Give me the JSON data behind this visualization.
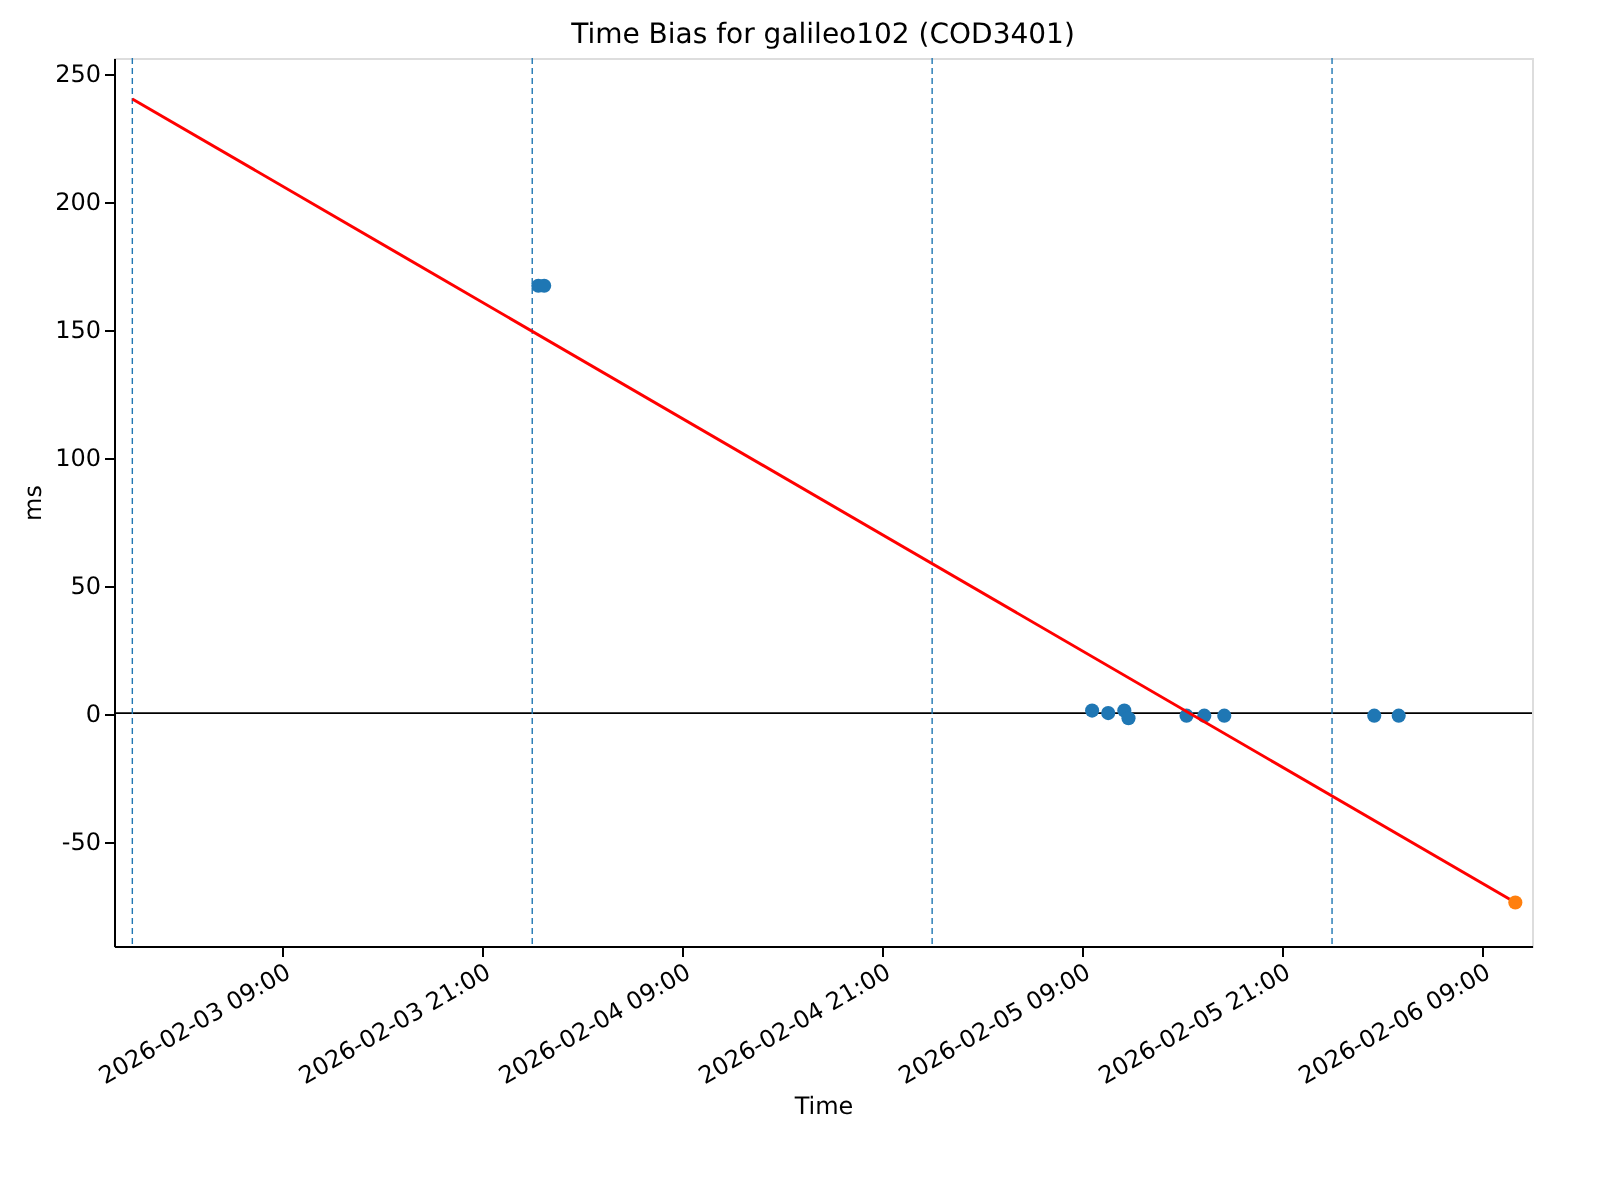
{
  "chart_data": {
    "type": "scatter",
    "title": "Time Bias for galileo102 (COD3401)",
    "xlabel": "Time",
    "ylabel": "ms",
    "series": [
      {
        "type": "scatter",
        "color": "#1f77b4",
        "marker": "circle",
        "x": [
          "2026-02-04T00:22",
          "2026-02-04T00:43",
          "2026-02-05T09:36",
          "2026-02-05T10:34",
          "2026-02-05T11:32",
          "2026-02-05T11:47",
          "2026-02-05T15:16",
          "2026-02-05T16:20",
          "2026-02-05T17:32",
          "2026-02-06T02:32",
          "2026-02-06T04:00"
        ],
        "values": [
          167,
          167,
          1,
          0,
          1,
          -2,
          -1,
          -1,
          -1,
          -1,
          -1
        ]
      },
      {
        "type": "line",
        "color": "#ff0000",
        "line_style": "solid",
        "marker": "none",
        "x": [
          "2026-02-03T00:00",
          "2026-02-06T11:00"
        ],
        "values": [
          240,
          -74
        ]
      },
      {
        "type": "scatter",
        "color": "#ff7f0e",
        "marker": "circle",
        "x": [
          "2026-02-06T11:00"
        ],
        "values": [
          -74
        ]
      }
    ],
    "xlim": [
      "2026-02-02T22:54",
      "2026-02-06T12:00"
    ],
    "xticks": [
      {
        "value": "2026-02-03T09:00",
        "label": "2026-02-03 09:00"
      },
      {
        "value": "2026-02-03T21:00",
        "label": "2026-02-03 21:00"
      },
      {
        "value": "2026-02-04T09:00",
        "label": "2026-02-04 09:00"
      },
      {
        "value": "2026-02-04T21:00",
        "label": "2026-02-04 21:00"
      },
      {
        "value": "2026-02-05T09:00",
        "label": "2026-02-05 09:00"
      },
      {
        "value": "2026-02-05T21:00",
        "label": "2026-02-05 21:00"
      },
      {
        "value": "2026-02-06T09:00",
        "label": "2026-02-06 09:00"
      }
    ],
    "ylim": [
      -91,
      256
    ],
    "yticks": [
      -50,
      0,
      50,
      100,
      150,
      200,
      250
    ],
    "ref_lines": [
      {
        "axis": "y",
        "value": 0,
        "color": "#000000",
        "line_style": "solid"
      },
      {
        "axis": "x",
        "value": "2026-02-03T00:00",
        "color": "#1f77b4",
        "line_style": "dashed"
      },
      {
        "axis": "x",
        "value": "2026-02-04T00:00",
        "color": "#1f77b4",
        "line_style": "dashed"
      },
      {
        "axis": "x",
        "value": "2026-02-05T00:00",
        "color": "#1f77b4",
        "line_style": "dashed"
      },
      {
        "axis": "x",
        "value": "2026-02-06T00:00",
        "color": "#1f77b4",
        "line_style": "dashed"
      }
    ],
    "grid": false
  }
}
